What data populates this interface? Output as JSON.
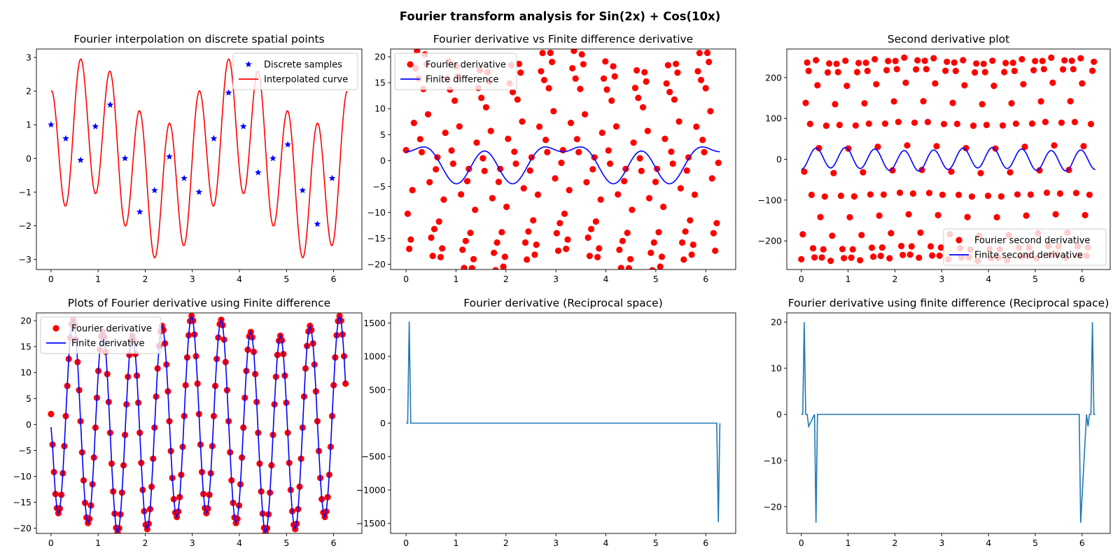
{
  "figure": {
    "title": "Fourier transform analysis for Sin(2x) + Cos(10x)"
  },
  "chart_data": [
    {
      "type": "line",
      "title": "Fourier interpolation on discrete spatial points",
      "xlabel": "",
      "ylabel": "",
      "xlim": [
        -0.31,
        6.6
      ],
      "ylim": [
        -3.3,
        3.25
      ],
      "xticks": [
        "0",
        "1",
        "2",
        "3",
        "4",
        "5",
        "6"
      ],
      "yticks": [
        "3",
        "2",
        "1",
        "0",
        "−1",
        "−2",
        "−3"
      ],
      "legend_position": "upper-right",
      "series": [
        {
          "name": "Discrete samples",
          "marker": "star",
          "color": "#0000ff",
          "x": [
            0.0,
            0.314,
            0.628,
            0.942,
            1.257,
            1.571,
            1.885,
            2.199,
            2.513,
            2.827,
            3.142,
            3.456,
            3.77,
            4.084,
            4.398,
            4.712,
            5.027,
            5.341,
            5.655,
            5.969
          ],
          "y": [
            1.0,
            0.59,
            -0.05,
            0.95,
            1.59,
            0.0,
            -1.59,
            -0.95,
            0.05,
            -0.59,
            -1.0,
            0.59,
            1.95,
            0.95,
            -0.42,
            0.0,
            0.41,
            -0.95,
            -1.95,
            -0.59
          ]
        },
        {
          "name": "Interpolated curve",
          "color": "#ff0000",
          "function": "sin(2x)+2cos(10x)",
          "x_range": [
            0,
            6.283
          ]
        }
      ]
    },
    {
      "type": "line",
      "title": "Fourier derivative vs Finite difference derivative",
      "xlabel": "",
      "ylabel": "",
      "xlim": [
        -0.31,
        6.6
      ],
      "ylim": [
        -21.0,
        21.5
      ],
      "xticks": [
        "0",
        "1",
        "2",
        "3",
        "4",
        "5",
        "6"
      ],
      "yticks": [
        "20",
        "15",
        "10",
        "5",
        "0",
        "−5",
        "−10",
        "−15",
        "−20"
      ],
      "legend_position": "upper-left",
      "series": [
        {
          "name": "Fourier derivative",
          "marker": "circle",
          "color": "#ff0000",
          "function": "2cos(2x) - 20sin(10x) sampled at x + 0.3k",
          "x_range": [
            0,
            6.283
          ],
          "points": 200
        },
        {
          "name": "Finite difference",
          "color": "#0000ff",
          "function": "2cos(2x) + 4 sin(x)-modulated oscillation",
          "x_range": [
            0,
            6.283
          ]
        }
      ]
    },
    {
      "type": "scatter",
      "title": "Second derivative plot",
      "xlabel": "",
      "ylabel": "",
      "xlim": [
        -0.31,
        6.6
      ],
      "ylim": [
        -270,
        270
      ],
      "xticks": [
        "0",
        "1",
        "2",
        "3",
        "4",
        "5",
        "6"
      ],
      "yticks": [
        "200",
        "100",
        "0",
        "−100",
        "−200"
      ],
      "legend_position": "lower-right",
      "series": [
        {
          "name": "Fourier second derivative",
          "marker": "circle",
          "color": "#ff0000",
          "function": "-4sin(2x) - 200cos(10x) sampled at x + 0.3k",
          "x_range": [
            0,
            6.283
          ],
          "points": 200
        },
        {
          "name": "Finite second derivative",
          "color": "#0000ff",
          "function": "-25cos(10x)",
          "x_range": [
            0,
            6.283
          ]
        }
      ]
    },
    {
      "type": "line",
      "title": "Plots of Fourier derivative using Finite difference",
      "xlabel": "",
      "ylabel": "",
      "xlim": [
        -0.31,
        6.6
      ],
      "ylim": [
        -21.0,
        21.5
      ],
      "xticks": [
        "0",
        "1",
        "2",
        "3",
        "4",
        "5",
        "6"
      ],
      "yticks": [
        "20",
        "15",
        "10",
        "5",
        "0",
        "−5",
        "−10",
        "−15",
        "−20"
      ],
      "legend_position": "upper-left",
      "series": [
        {
          "name": "Fourier derivative",
          "marker": "circle",
          "color": "#ff0000",
          "function": "2cos(2x) - 20sin(10x)",
          "x_range": [
            0,
            6.283
          ],
          "points": 200
        },
        {
          "name": "Finite derivative",
          "color": "#0000ff",
          "function": "2cos(2x) - 20sin(10x)",
          "x_range": [
            0,
            6.283
          ]
        }
      ]
    },
    {
      "type": "line",
      "title": "Fourier derivative (Reciprocal space)",
      "xlabel": "",
      "ylabel": "",
      "xlim": [
        -0.31,
        6.6
      ],
      "ylim": [
        -1650,
        1650
      ],
      "xticks": [
        "0",
        "1",
        "2",
        "3",
        "4",
        "5",
        "6"
      ],
      "yticks": [
        "1500",
        "1000",
        "500",
        "0",
        "−500",
        "−1000",
        "−1500"
      ],
      "series": [
        {
          "name": "",
          "color": "#1f77b4",
          "x": [
            0.0,
            0.0314,
            0.0628,
            0.0942,
            6.1889,
            6.2203,
            6.2517,
            6.2832
          ],
          "y": [
            0,
            0,
            1520,
            0,
            0,
            0,
            -1480,
            0
          ]
        }
      ]
    },
    {
      "type": "line",
      "title": "Fourier derivative using finite difference (Reciprocal space)",
      "xlabel": "",
      "ylabel": "",
      "xlim": [
        -0.31,
        6.6
      ],
      "ylim": [
        -25.8,
        22.0
      ],
      "xticks": [
        "0",
        "1",
        "2",
        "3",
        "4",
        "5",
        "6"
      ],
      "yticks": [
        "20",
        "10",
        "0",
        "−10",
        "−20"
      ],
      "series": [
        {
          "name": "",
          "color": "#1f77b4",
          "x": [
            0.0,
            0.0314,
            0.0628,
            0.0942,
            0.1257,
            0.1571,
            0.2827,
            0.3142,
            0.3456,
            5.9376,
            5.969,
            6.0947,
            6.1261,
            6.1575,
            6.1889,
            6.2203,
            6.2517,
            6.2832
          ],
          "y": [
            0,
            0,
            20,
            0,
            0,
            -2.6,
            0,
            -23.5,
            0,
            0,
            -23.5,
            0,
            -2.6,
            0,
            0,
            20,
            0,
            0
          ]
        }
      ]
    }
  ]
}
